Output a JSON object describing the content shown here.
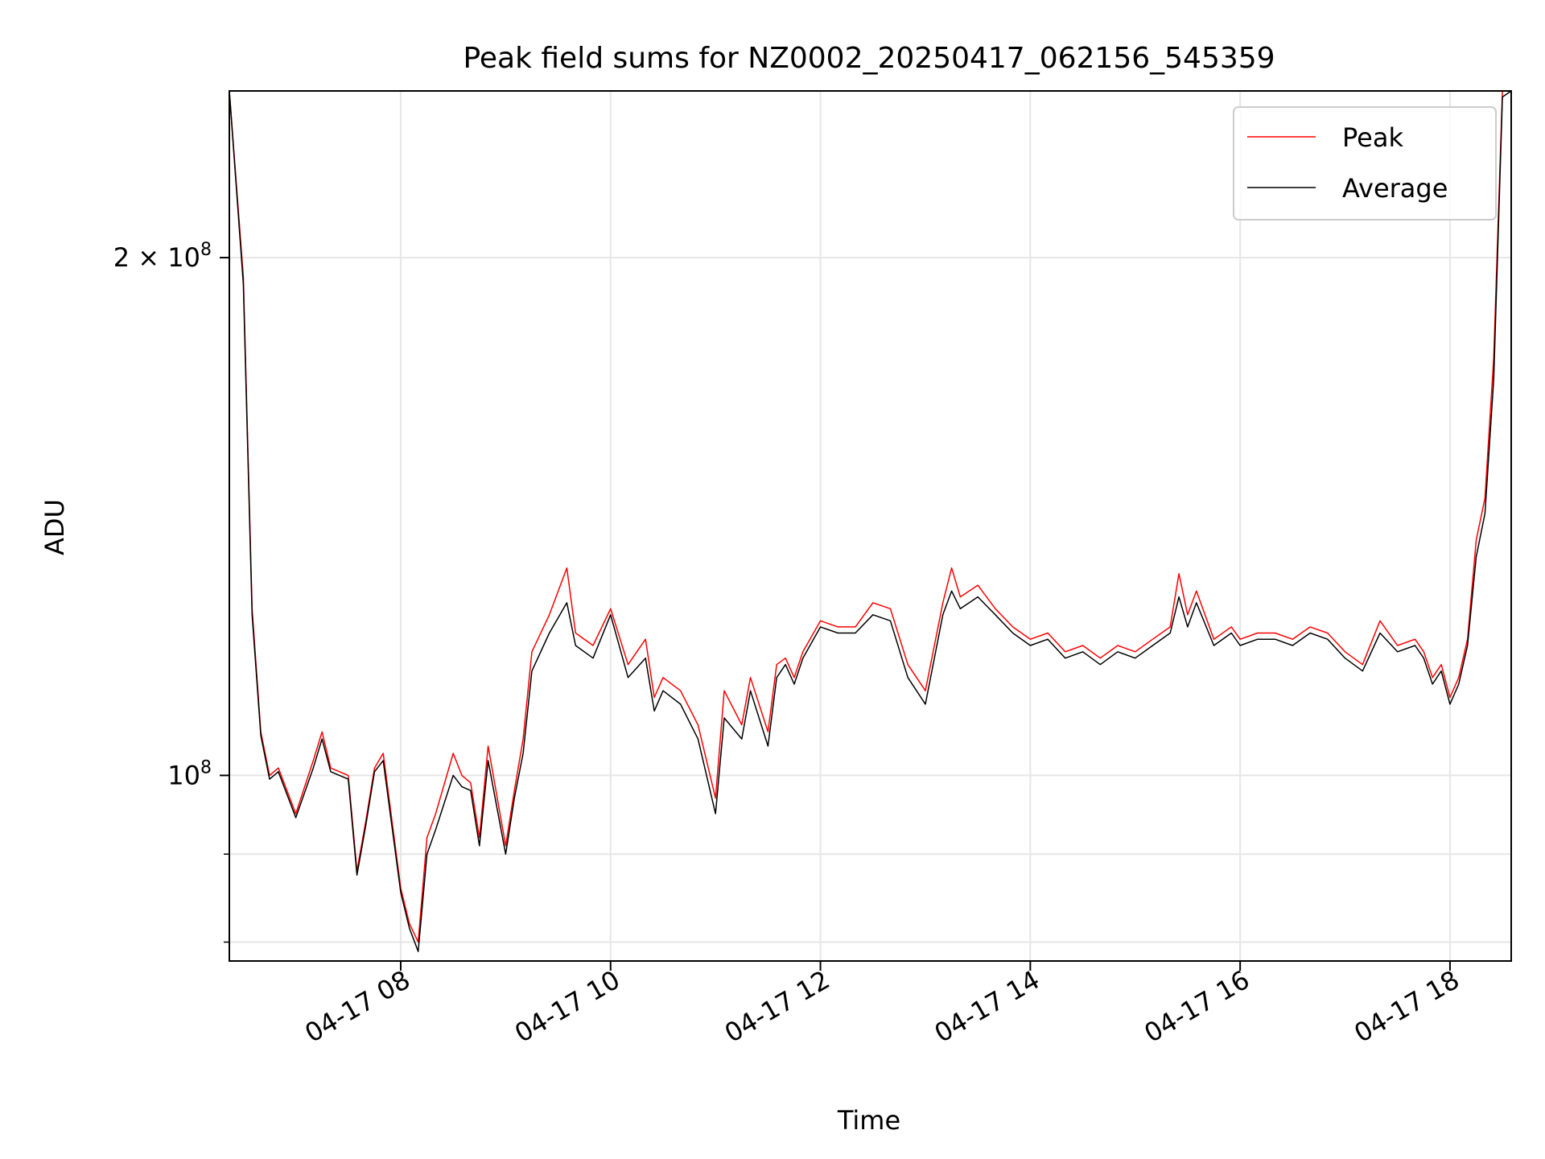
{
  "chart_data": {
    "type": "line",
    "title": "Peak field sums for NZ0002_20250417_062156_545359",
    "xlabel": "Time",
    "ylabel": "ADU",
    "y_scale": "log",
    "grid": true,
    "legend_position": "upper right",
    "x_range": [
      "2025-04-17 06:22",
      "2025-04-17 18:35"
    ],
    "ylim": [
      78000000,
      250000000
    ],
    "x_ticks": [
      "04-17 08",
      "04-17 10",
      "04-17 12",
      "04-17 14",
      "04-17 16",
      "04-17 18"
    ],
    "x_tick_values": [
      "2025-04-17 08:00",
      "2025-04-17 10:00",
      "2025-04-17 12:00",
      "2025-04-17 14:00",
      "2025-04-17 16:00",
      "2025-04-17 18:00"
    ],
    "y_major_ticks": [
      {
        "value": 100000000,
        "label_base": "10",
        "label_exp": "8",
        "label_coef": ""
      },
      {
        "value": 200000000,
        "label_base": "10",
        "label_exp": "8",
        "label_coef": "2 × "
      }
    ],
    "y_minor_ticks": [
      90000000,
      80000000
    ],
    "series": [
      {
        "name": "Peak",
        "color": "#ff0000",
        "x": [
          "2025-04-17 06:22",
          "2025-04-17 06:30",
          "2025-04-17 06:35",
          "2025-04-17 06:40",
          "2025-04-17 06:45",
          "2025-04-17 06:50",
          "2025-04-17 07:00",
          "2025-04-17 07:10",
          "2025-04-17 07:15",
          "2025-04-17 07:20",
          "2025-04-17 07:30",
          "2025-04-17 07:35",
          "2025-04-17 07:40",
          "2025-04-17 07:45",
          "2025-04-17 07:50",
          "2025-04-17 08:00",
          "2025-04-17 08:05",
          "2025-04-17 08:10",
          "2025-04-17 08:15",
          "2025-04-17 08:20",
          "2025-04-17 08:30",
          "2025-04-17 08:35",
          "2025-04-17 08:40",
          "2025-04-17 08:45",
          "2025-04-17 08:50",
          "2025-04-17 09:00",
          "2025-04-17 09:05",
          "2025-04-17 09:10",
          "2025-04-17 09:15",
          "2025-04-17 09:25",
          "2025-04-17 09:35",
          "2025-04-17 09:40",
          "2025-04-17 09:50",
          "2025-04-17 10:00",
          "2025-04-17 10:10",
          "2025-04-17 10:20",
          "2025-04-17 10:25",
          "2025-04-17 10:30",
          "2025-04-17 10:40",
          "2025-04-17 10:50",
          "2025-04-17 11:00",
          "2025-04-17 11:05",
          "2025-04-17 11:15",
          "2025-04-17 11:20",
          "2025-04-17 11:30",
          "2025-04-17 11:35",
          "2025-04-17 11:40",
          "2025-04-17 11:45",
          "2025-04-17 11:50",
          "2025-04-17 12:00",
          "2025-04-17 12:10",
          "2025-04-17 12:20",
          "2025-04-17 12:30",
          "2025-04-17 12:40",
          "2025-04-17 12:50",
          "2025-04-17 13:00",
          "2025-04-17 13:10",
          "2025-04-17 13:15",
          "2025-04-17 13:20",
          "2025-04-17 13:30",
          "2025-04-17 13:40",
          "2025-04-17 13:50",
          "2025-04-17 14:00",
          "2025-04-17 14:10",
          "2025-04-17 14:20",
          "2025-04-17 14:30",
          "2025-04-17 14:40",
          "2025-04-17 14:50",
          "2025-04-17 15:00",
          "2025-04-17 15:10",
          "2025-04-17 15:20",
          "2025-04-17 15:25",
          "2025-04-17 15:30",
          "2025-04-17 15:35",
          "2025-04-17 15:45",
          "2025-04-17 15:55",
          "2025-04-17 16:00",
          "2025-04-17 16:10",
          "2025-04-17 16:20",
          "2025-04-17 16:30",
          "2025-04-17 16:40",
          "2025-04-17 16:50",
          "2025-04-17 17:00",
          "2025-04-17 17:10",
          "2025-04-17 17:20",
          "2025-04-17 17:30",
          "2025-04-17 17:40",
          "2025-04-17 17:45",
          "2025-04-17 17:50",
          "2025-04-17 17:55",
          "2025-04-17 18:00",
          "2025-04-17 18:05",
          "2025-04-17 18:10",
          "2025-04-17 18:15",
          "2025-04-17 18:20",
          "2025-04-17 18:25",
          "2025-04-17 18:30",
          "2025-04-17 18:35"
        ],
        "y": [
          250000000,
          195000000,
          125000000,
          106000000,
          100000000,
          101000000,
          95000000,
          102000000,
          106000000,
          101000000,
          100000000,
          88000000,
          94000000,
          101000000,
          103000000,
          86000000,
          82000000,
          80000000,
          92000000,
          95000000,
          103000000,
          100000000,
          99000000,
          92000000,
          104000000,
          91000000,
          98000000,
          105000000,
          118000000,
          124000000,
          132000000,
          121000000,
          119000000,
          125000000,
          116000000,
          120000000,
          111000000,
          114000000,
          112000000,
          107000000,
          97000000,
          112000000,
          107000000,
          114000000,
          106000000,
          116000000,
          117000000,
          114000000,
          118000000,
          123000000,
          122000000,
          122000000,
          126000000,
          125000000,
          116000000,
          112000000,
          126000000,
          132000000,
          127000000,
          129000000,
          125000000,
          122000000,
          120000000,
          121000000,
          118000000,
          119000000,
          117000000,
          119000000,
          118000000,
          120000000,
          122000000,
          131000000,
          124000000,
          128000000,
          120000000,
          122000000,
          120000000,
          121000000,
          121000000,
          120000000,
          122000000,
          121000000,
          118000000,
          116000000,
          123000000,
          119000000,
          120000000,
          118000000,
          114000000,
          116000000,
          111000000,
          114000000,
          120000000,
          137000000,
          145000000,
          175000000,
          250000000,
          250000000
        ]
      },
      {
        "name": "Average",
        "color": "#000000",
        "x": [
          "2025-04-17 06:22",
          "2025-04-17 06:30",
          "2025-04-17 06:35",
          "2025-04-17 06:40",
          "2025-04-17 06:45",
          "2025-04-17 06:50",
          "2025-04-17 07:00",
          "2025-04-17 07:10",
          "2025-04-17 07:15",
          "2025-04-17 07:20",
          "2025-04-17 07:30",
          "2025-04-17 07:35",
          "2025-04-17 07:40",
          "2025-04-17 07:45",
          "2025-04-17 07:50",
          "2025-04-17 08:00",
          "2025-04-17 08:05",
          "2025-04-17 08:10",
          "2025-04-17 08:15",
          "2025-04-17 08:20",
          "2025-04-17 08:30",
          "2025-04-17 08:35",
          "2025-04-17 08:40",
          "2025-04-17 08:45",
          "2025-04-17 08:50",
          "2025-04-17 09:00",
          "2025-04-17 09:05",
          "2025-04-17 09:10",
          "2025-04-17 09:15",
          "2025-04-17 09:25",
          "2025-04-17 09:35",
          "2025-04-17 09:40",
          "2025-04-17 09:50",
          "2025-04-17 10:00",
          "2025-04-17 10:10",
          "2025-04-17 10:20",
          "2025-04-17 10:25",
          "2025-04-17 10:30",
          "2025-04-17 10:40",
          "2025-04-17 10:50",
          "2025-04-17 11:00",
          "2025-04-17 11:05",
          "2025-04-17 11:15",
          "2025-04-17 11:20",
          "2025-04-17 11:30",
          "2025-04-17 11:35",
          "2025-04-17 11:40",
          "2025-04-17 11:45",
          "2025-04-17 11:50",
          "2025-04-17 12:00",
          "2025-04-17 12:10",
          "2025-04-17 12:20",
          "2025-04-17 12:30",
          "2025-04-17 12:40",
          "2025-04-17 12:50",
          "2025-04-17 13:00",
          "2025-04-17 13:10",
          "2025-04-17 13:15",
          "2025-04-17 13:20",
          "2025-04-17 13:30",
          "2025-04-17 13:40",
          "2025-04-17 13:50",
          "2025-04-17 14:00",
          "2025-04-17 14:10",
          "2025-04-17 14:20",
          "2025-04-17 14:30",
          "2025-04-17 14:40",
          "2025-04-17 14:50",
          "2025-04-17 15:00",
          "2025-04-17 15:10",
          "2025-04-17 15:20",
          "2025-04-17 15:25",
          "2025-04-17 15:30",
          "2025-04-17 15:35",
          "2025-04-17 15:45",
          "2025-04-17 15:55",
          "2025-04-17 16:00",
          "2025-04-17 16:10",
          "2025-04-17 16:20",
          "2025-04-17 16:30",
          "2025-04-17 16:40",
          "2025-04-17 16:50",
          "2025-04-17 17:00",
          "2025-04-17 17:10",
          "2025-04-17 17:20",
          "2025-04-17 17:30",
          "2025-04-17 17:40",
          "2025-04-17 17:45",
          "2025-04-17 17:50",
          "2025-04-17 17:55",
          "2025-04-17 18:00",
          "2025-04-17 18:05",
          "2025-04-17 18:10",
          "2025-04-17 18:15",
          "2025-04-17 18:20",
          "2025-04-17 18:25",
          "2025-04-17 18:30",
          "2025-04-17 18:35"
        ],
        "y": [
          250000000,
          193000000,
          124000000,
          105500000,
          99500000,
          100500000,
          94500000,
          101000000,
          105000000,
          100500000,
          99500000,
          87500000,
          93500000,
          100500000,
          102000000,
          85500000,
          81500000,
          79000000,
          90000000,
          93000000,
          100000000,
          98500000,
          98000000,
          91000000,
          102000000,
          90000000,
          97000000,
          103000000,
          115000000,
          121000000,
          126000000,
          119000000,
          117000000,
          124000000,
          114000000,
          117000000,
          109000000,
          112000000,
          110000000,
          105000000,
          95000000,
          108000000,
          105000000,
          112000000,
          104000000,
          114000000,
          116000000,
          113000000,
          117000000,
          122000000,
          121000000,
          121000000,
          124000000,
          123000000,
          114000000,
          110000000,
          124000000,
          128000000,
          125000000,
          127000000,
          124000000,
          121000000,
          119000000,
          120000000,
          117000000,
          118000000,
          116000000,
          118000000,
          117000000,
          119000000,
          121000000,
          127000000,
          122000000,
          126000000,
          119000000,
          121000000,
          119000000,
          120000000,
          120000000,
          119000000,
          121000000,
          120000000,
          117000000,
          115000000,
          121000000,
          118000000,
          119000000,
          117000000,
          113000000,
          115000000,
          110000000,
          113000000,
          119000000,
          134000000,
          142000000,
          170000000,
          248000000,
          250000000
        ]
      }
    ]
  }
}
